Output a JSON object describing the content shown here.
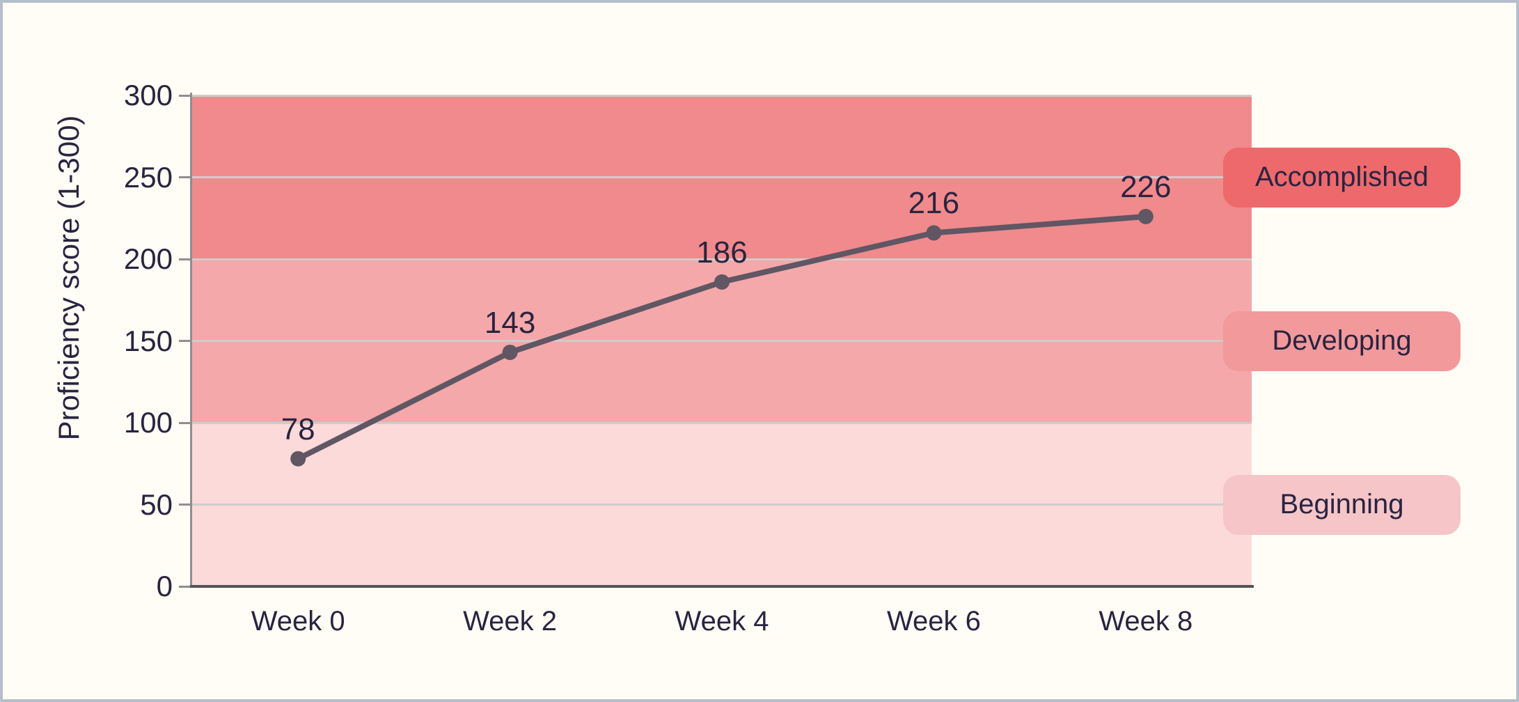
{
  "figure": {
    "background": "#fffdf6",
    "border_color": "#b6becd",
    "text_color": "#2a2440",
    "line_color": "#605664",
    "grid_color": "#cfcccd",
    "axis_color": "#918d90",
    "baseline_color": "#56525a"
  },
  "chart_data": {
    "type": "line",
    "title": "",
    "x_categories": [
      "Week 0",
      "Week 2",
      "Week 4",
      "Week 6",
      "Week 8"
    ],
    "series": [
      {
        "name": "Proficiency score",
        "values": [
          78,
          143,
          186,
          216,
          226
        ]
      }
    ],
    "point_labels": [
      "78",
      "143",
      "186",
      "216",
      "226"
    ],
    "xlabel": "",
    "ylabel": "Proficiency score (1-300)",
    "ylim": [
      0,
      300
    ],
    "y_ticks": [
      0,
      50,
      100,
      150,
      200,
      250,
      300
    ],
    "grid": true,
    "legend_position": "right-badges",
    "bands": [
      {
        "label": "Beginning",
        "from": 0,
        "to": 100,
        "fill": "#fbdad9",
        "badge_fill": "#f5c5c8"
      },
      {
        "label": "Developing",
        "from": 100,
        "to": 200,
        "fill": "#f4a8aa",
        "badge_fill": "#f2999c"
      },
      {
        "label": "Accomplished",
        "from": 200,
        "to": 300,
        "fill": "#f08a8c",
        "badge_fill": "#ed696c"
      }
    ]
  }
}
